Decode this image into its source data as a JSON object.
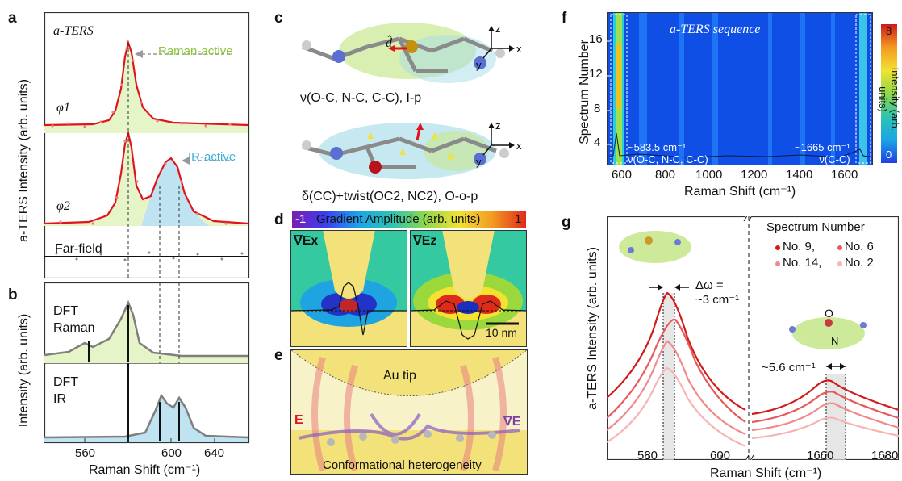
{
  "panel_labels": [
    "a",
    "b",
    "c",
    "d",
    "e",
    "f",
    "g"
  ],
  "colors": {
    "red": "#e0141b",
    "green_fill": "#e6f5c8",
    "blue_fill": "#bfe3f0",
    "gray_line": "#7f7f7f",
    "gold": "#f1dc72"
  },
  "panel_a": {
    "title": "a-TERS",
    "y_label": "a-TERS Intensity (arb. units)",
    "phi1": "φ1",
    "phi2": "φ2",
    "farfield": "Far-field",
    "raman_active": "Raman-active",
    "ir_active": "IR-active"
  },
  "panel_b": {
    "y_label": "Intensity (arb. units)",
    "dft_raman": [
      "DFT",
      "Raman"
    ],
    "dft_ir": [
      "DFT",
      "IR"
    ],
    "x_ticks": [
      "560",
      "600",
      "640"
    ],
    "x_label": "Raman Shift (cm⁻¹)"
  },
  "panel_c": {
    "mode1": "ν(O-C, N-C, C-C), I-p",
    "mode2": "δ(CC)+twist(OC2, NC2), O-o-p",
    "axes": [
      "z",
      "x",
      "y"
    ],
    "d_hat": "d̂"
  },
  "panel_d": {
    "colorbar_title": "Gradient Amplitude (arb. units)",
    "cb_min": "-1",
    "cb_max": "1",
    "grad_x": "∇Ex",
    "grad_z": "∇Ez",
    "scale_bar": "10 nm"
  },
  "panel_e": {
    "au_tip": "Au tip",
    "e_vec": "E",
    "grad_e": "∇E",
    "caption": "Conformational heterogeneity"
  },
  "panel_f": {
    "title": "a-TERS sequence",
    "y_label": "Spectrum Number",
    "y_ticks": [
      "16",
      "12",
      "8",
      "4"
    ],
    "x_ticks": [
      "600",
      "800",
      "1000",
      "1200",
      "1400",
      "1600"
    ],
    "x_label": "Raman Shift (cm⁻¹)",
    "ann_left": [
      "~583.5 cm⁻¹",
      "ν(O-C, N-C, C-C)"
    ],
    "ann_right": [
      "~1665 cm⁻¹",
      "ν(C-C)"
    ],
    "cb_label": "Intensity (arb. units)",
    "cb_top": "8",
    "cb_bottom": "0"
  },
  "panel_g": {
    "y_label": "a-TERS Intensity (arb. units)",
    "legend_title": "Spectrum Number",
    "legend": [
      "No. 9,",
      "No. 6",
      "No. 14,",
      "No. 2"
    ],
    "delta_omega": [
      "Δω =",
      "~3 cm⁻¹"
    ],
    "shift2": "~5.6 cm⁻¹",
    "x_ticks": [
      "580",
      "600",
      "1660",
      "1680"
    ],
    "x_label": "Raman Shift (cm⁻¹)",
    "atoms": [
      "O",
      "N"
    ]
  }
}
